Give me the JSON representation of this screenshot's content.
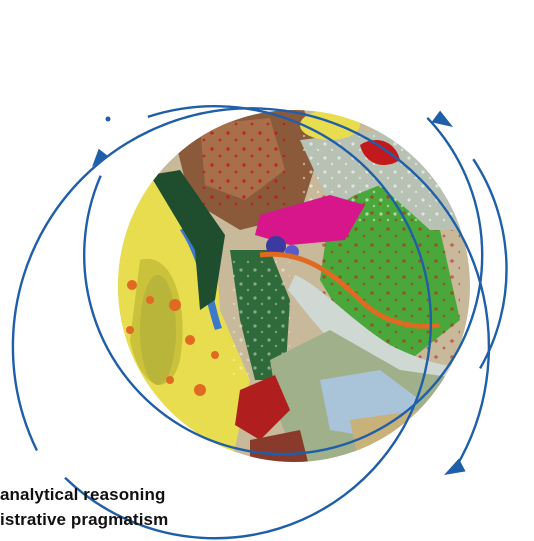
{
  "captions": {
    "line1": "analytical reasoning",
    "line2": "istrative pragmatism"
  },
  "colors": {
    "ring": "#1f5ea8",
    "arrowhead": "#1f5ea8",
    "background": "#ffffff",
    "text": "#111111"
  },
  "map_image": {
    "name": "geological-map",
    "palette": [
      "#e8dd4f",
      "#b9b53a",
      "#e06a22",
      "#2f6b3a",
      "#1f4e2f",
      "#4aa83a",
      "#8a5a3a",
      "#c7b99a",
      "#d0d8d4",
      "#a9c3d8",
      "#3e78c8",
      "#d6168a",
      "#b01e1e",
      "#9fb08a"
    ]
  }
}
